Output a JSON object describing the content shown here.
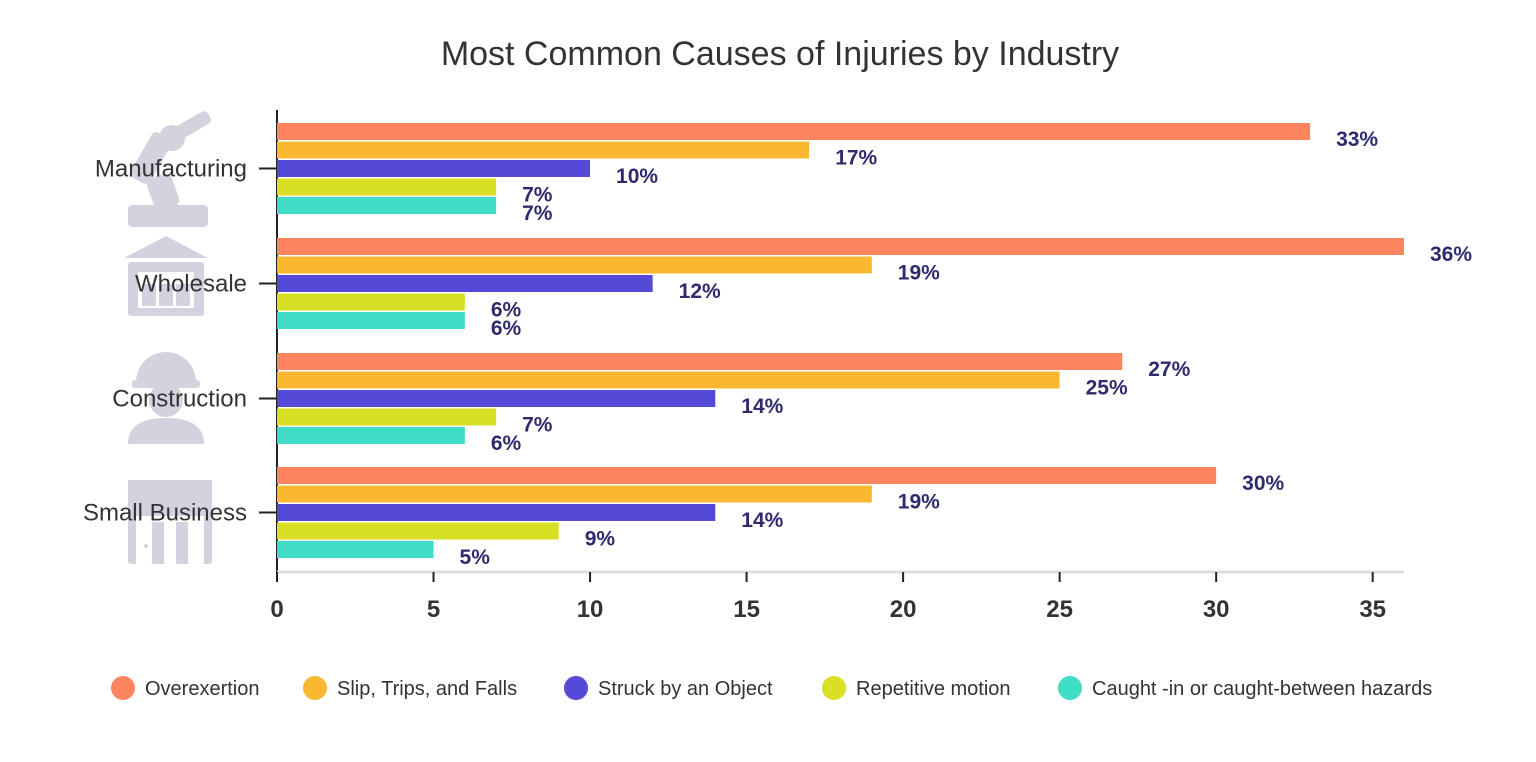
{
  "chart_data": {
    "type": "bar",
    "orientation": "horizontal",
    "title": "Most Common Causes of Injuries by Industry",
    "categories": [
      "Manufacturing",
      "Wholesale",
      "Construction",
      "Small Business"
    ],
    "series": [
      {
        "name": "Overexertion",
        "color": "#fc845f",
        "values": [
          33,
          36,
          27,
          30
        ]
      },
      {
        "name": "Slip, Trips, and Falls",
        "color": "#f9b82f",
        "values": [
          17,
          19,
          25,
          19
        ]
      },
      {
        "name": "Struck by an Object",
        "color": "#5549d8",
        "values": [
          10,
          12,
          14,
          14
        ]
      },
      {
        "name": "Repetitive motion",
        "color": "#d8e026",
        "values": [
          7,
          6,
          7,
          9
        ]
      },
      {
        "name": "Caught -in or caught-between hazards",
        "color": "#3fdcc6",
        "values": [
          7,
          6,
          6,
          5
        ]
      }
    ],
    "value_suffix": "%",
    "xlim": [
      0,
      36
    ],
    "xticks": [
      0,
      5,
      10,
      15,
      20,
      25,
      30,
      35
    ],
    "xlabel": "",
    "ylabel": "",
    "legend_position": "bottom",
    "category_icons": [
      "robot-arm-icon",
      "warehouse-icon",
      "construction-worker-icon",
      "storefront-icon"
    ]
  },
  "colors": {
    "label_color": "#2e2a6e",
    "icon_color": "#d3d3df",
    "axis_color": "#222222"
  }
}
